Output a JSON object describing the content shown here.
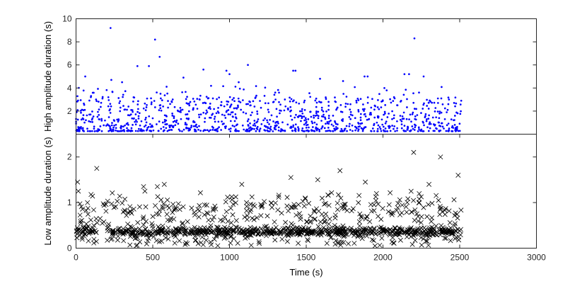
{
  "chart_data": [
    {
      "type": "scatter",
      "title": "",
      "xlabel": "",
      "ylabel": "High amplitude duration (s)",
      "xlim": [
        0,
        3000
      ],
      "ylim": [
        0,
        10
      ],
      "yticks": [
        2,
        4,
        6,
        8,
        10
      ],
      "grid": false,
      "marker": "dot",
      "color": "#0000ff",
      "series": [
        {
          "time_range": [
            0,
            2510
          ],
          "generated_points": 1100,
          "points": [
            [
              225,
              9.2
            ],
            [
              515,
              8.2
            ],
            [
              2205,
              8.3
            ],
            [
              545,
              6.7
            ],
            [
              400,
              5.9
            ],
            [
              475,
              5.9
            ],
            [
              1120,
              6.0
            ],
            [
              830,
              5.6
            ],
            [
              980,
              5.5
            ],
            [
              1000,
              5.2
            ],
            [
              1415,
              5.5
            ],
            [
              1430,
              5.5
            ],
            [
              1880,
              5.0
            ],
            [
              1900,
              5.0
            ],
            [
              2140,
              5.2
            ],
            [
              2170,
              5.2
            ],
            [
              2265,
              5.0
            ],
            [
              60,
              5.0
            ],
            [
              700,
              4.9
            ],
            [
              1590,
              4.8
            ],
            [
              230,
              4.7
            ],
            [
              300,
              4.5
            ],
            [
              1060,
              4.5
            ],
            [
              1740,
              4.6
            ],
            [
              2380,
              3.1
            ],
            [
              2430,
              3.0
            ],
            [
              2510,
              2.9
            ]
          ]
        }
      ]
    },
    {
      "type": "scatter",
      "title": "",
      "xlabel": "Time (s)",
      "ylabel": "Low amplitude duration (s)",
      "xlim": [
        0,
        3000
      ],
      "ylim": [
        0,
        2.5
      ],
      "xticks": [
        0,
        500,
        1000,
        1500,
        2000,
        2500,
        3000
      ],
      "yticks": [
        0,
        1,
        2
      ],
      "grid": false,
      "marker": "x",
      "color": "#000000",
      "series": [
        {
          "time_range": [
            0,
            2510
          ],
          "generated_points": 1100,
          "points": [
            [
              2200,
              2.1
            ],
            [
              2375,
              2.0
            ],
            [
              135,
              1.75
            ],
            [
              1720,
              1.7
            ],
            [
              1080,
              1.4
            ],
            [
              1400,
              1.55
            ],
            [
              1575,
              1.5
            ],
            [
              2490,
              1.6
            ],
            [
              10,
              1.45
            ],
            [
              15,
              1.25
            ],
            [
              440,
              1.35
            ],
            [
              530,
              1.35
            ],
            [
              575,
              1.4
            ],
            [
              1885,
              1.45
            ],
            [
              2300,
              1.4
            ]
          ]
        }
      ]
    }
  ]
}
